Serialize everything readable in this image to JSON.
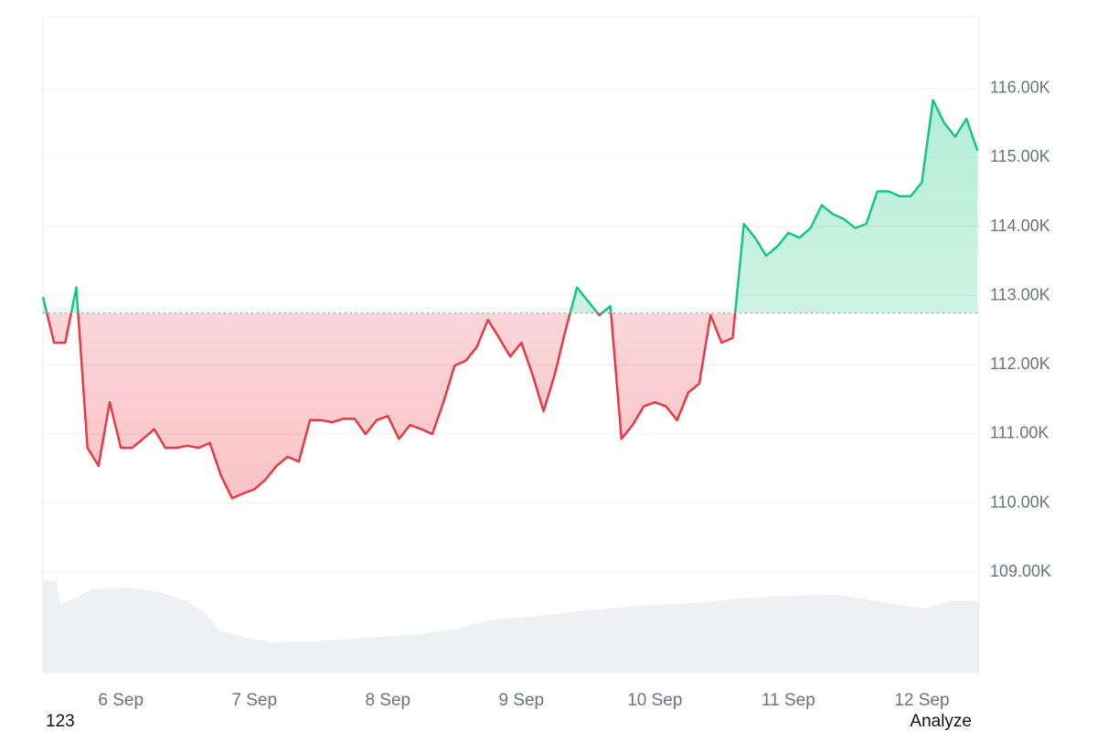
{
  "chart_data": {
    "type": "baseline-line",
    "categories": [
      null,
      null,
      null,
      null,
      null,
      null,
      null,
      "6 Sep",
      null,
      null,
      null,
      null,
      null,
      null,
      null,
      null,
      null,
      null,
      null,
      "7 Sep",
      null,
      null,
      null,
      null,
      null,
      null,
      null,
      null,
      null,
      null,
      null,
      "8 Sep",
      null,
      null,
      null,
      null,
      null,
      null,
      null,
      null,
      null,
      null,
      null,
      "9 Sep",
      null,
      null,
      null,
      null,
      null,
      null,
      null,
      null,
      null,
      null,
      null,
      "10 Sep",
      null,
      null,
      null,
      null,
      null,
      null,
      null,
      null,
      null,
      null,
      null,
      "11 Sep",
      null,
      null,
      null,
      null,
      null,
      null,
      null,
      null,
      null,
      null,
      null,
      "12 Sep",
      null,
      null,
      null,
      null,
      null
    ],
    "values": [
      112.98,
      112.32,
      112.32,
      113.12,
      110.8,
      110.54,
      111.46,
      110.8,
      110.8,
      110.93,
      111.07,
      110.8,
      110.8,
      110.83,
      110.8,
      110.87,
      110.4,
      110.07,
      110.14,
      110.2,
      110.34,
      110.54,
      110.67,
      110.6,
      111.2,
      111.2,
      111.17,
      111.22,
      111.22,
      111.0,
      111.2,
      111.26,
      110.93,
      111.13,
      111.07,
      111.0,
      111.46,
      111.99,
      112.06,
      112.26,
      112.65,
      112.39,
      112.12,
      112.32,
      111.86,
      111.33,
      111.86,
      112.52,
      113.12,
      112.92,
      112.72,
      112.85,
      110.93,
      111.13,
      111.4,
      111.46,
      111.4,
      111.2,
      111.6,
      111.73,
      112.72,
      112.32,
      112.39,
      114.04,
      113.84,
      113.58,
      113.71,
      113.91,
      113.84,
      113.98,
      114.31,
      114.18,
      114.11,
      113.98,
      114.04,
      114.51,
      114.51,
      114.44,
      114.44,
      114.64,
      115.83,
      115.5,
      115.3,
      115.56,
      115.1
    ],
    "baseline": 112.75,
    "up_color": "#16c784",
    "down_color": "#ea3943",
    "ylim": [
      107.55,
      117.04
    ],
    "yticks": [
      {
        "value": 109,
        "label": "109.00K"
      },
      {
        "value": 110,
        "label": "110.00K"
      },
      {
        "value": 111,
        "label": "111.00K"
      },
      {
        "value": 112,
        "label": "112.00K"
      },
      {
        "value": 113,
        "label": "113.00K"
      },
      {
        "value": 114,
        "label": "114.00K"
      },
      {
        "value": 115,
        "label": "115.00K"
      },
      {
        "value": 116,
        "label": "116.00K"
      }
    ],
    "grid": true
  },
  "footer": {
    "left": "123",
    "right": "Analyze"
  }
}
